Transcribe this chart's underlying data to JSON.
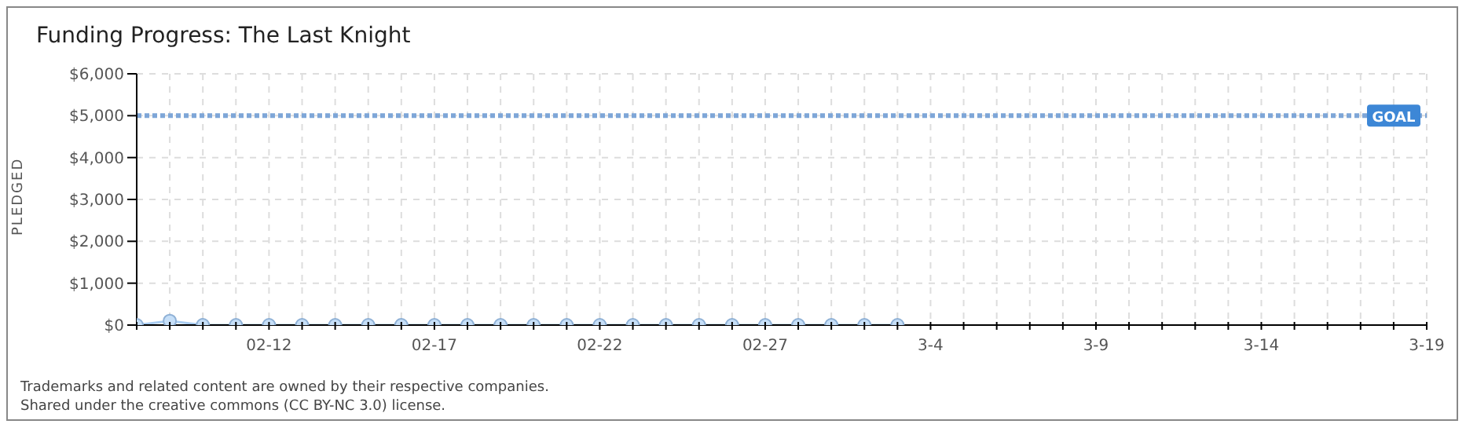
{
  "chart_data": {
    "type": "line",
    "title": "Funding Progress: The Last Knight",
    "ylabel": "PLEDGED",
    "x": [
      "--02-08",
      "--02-09",
      "--02-10",
      "--02-11",
      "--02-12",
      "--02-13",
      "--02-14",
      "--02-15",
      "--02-16",
      "--02-17",
      "--02-18",
      "--02-19",
      "--02-20",
      "--02-21",
      "--02-22",
      "--02-23",
      "--02-24",
      "--02-25",
      "--02-26",
      "--02-27",
      "--02-28",
      "--03-01",
      "--03-02",
      "--03-03"
    ],
    "series": [
      {
        "color": "#a9cdf2",
        "values": [
          0,
          100,
          0,
          0,
          0,
          0,
          0,
          0,
          0,
          0,
          0,
          0,
          0,
          0,
          0,
          0,
          0,
          0,
          0,
          0,
          0,
          0,
          0,
          0
        ]
      }
    ],
    "xlim": [
      "--02-08",
      "--03-19"
    ],
    "xticks": [
      {
        "value": "--02-08",
        "label": null
      },
      {
        "value": "--02-09",
        "label": null
      },
      {
        "value": "--02-10",
        "label": null
      },
      {
        "value": "--02-11",
        "label": null
      },
      {
        "value": "--02-12",
        "label": "02-12"
      },
      {
        "value": "--02-13",
        "label": null
      },
      {
        "value": "--02-14",
        "label": null
      },
      {
        "value": "--02-15",
        "label": null
      },
      {
        "value": "--02-16",
        "label": null
      },
      {
        "value": "--02-17",
        "label": "02-17"
      },
      {
        "value": "--02-18",
        "label": null
      },
      {
        "value": "--02-19",
        "label": null
      },
      {
        "value": "--02-20",
        "label": null
      },
      {
        "value": "--02-21",
        "label": null
      },
      {
        "value": "--02-22",
        "label": "02-22"
      },
      {
        "value": "--02-23",
        "label": null
      },
      {
        "value": "--02-24",
        "label": null
      },
      {
        "value": "--02-25",
        "label": null
      },
      {
        "value": "--02-26",
        "label": null
      },
      {
        "value": "--02-27",
        "label": "02-27"
      },
      {
        "value": "--02-28",
        "label": null
      },
      {
        "value": "--03-01",
        "label": null
      },
      {
        "value": "--03-02",
        "label": null
      },
      {
        "value": "--03-03",
        "label": null
      },
      {
        "value": "--03-04",
        "label": "3-4"
      },
      {
        "value": "--03-05",
        "label": null
      },
      {
        "value": "--03-06",
        "label": null
      },
      {
        "value": "--03-07",
        "label": null
      },
      {
        "value": "--03-08",
        "label": null
      },
      {
        "value": "--03-09",
        "label": "3-9"
      },
      {
        "value": "--03-10",
        "label": null
      },
      {
        "value": "--03-11",
        "label": null
      },
      {
        "value": "--03-12",
        "label": null
      },
      {
        "value": "--03-13",
        "label": null
      },
      {
        "value": "--03-14",
        "label": "3-14"
      },
      {
        "value": "--03-15",
        "label": null
      },
      {
        "value": "--03-16",
        "label": null
      },
      {
        "value": "--03-17",
        "label": null
      },
      {
        "value": "--03-18",
        "label": null
      },
      {
        "value": "--03-19",
        "label": "3-19"
      }
    ],
    "ylim": [
      0,
      6000
    ],
    "yticks": [
      {
        "value": 0,
        "label": "$0"
      },
      {
        "value": 1000,
        "label": "$1,000"
      },
      {
        "value": 2000,
        "label": "$2,000"
      },
      {
        "value": 3000,
        "label": "$3,000"
      },
      {
        "value": 4000,
        "label": "$4,000"
      },
      {
        "value": 5000,
        "label": "$5,000"
      },
      {
        "value": 6000,
        "label": "$6,000"
      }
    ],
    "ref_lines": [
      {
        "axis": "y",
        "value": 5000,
        "label": "GOAL",
        "color": "#7ea6d8",
        "line_style": "dotted"
      }
    ],
    "grid": true,
    "marker": "circle",
    "legend": false,
    "annotations": [
      "Trademarks and related content are owned by their respective companies.",
      "Shared under the creative commons (CC BY-NC 3.0) license."
    ]
  }
}
